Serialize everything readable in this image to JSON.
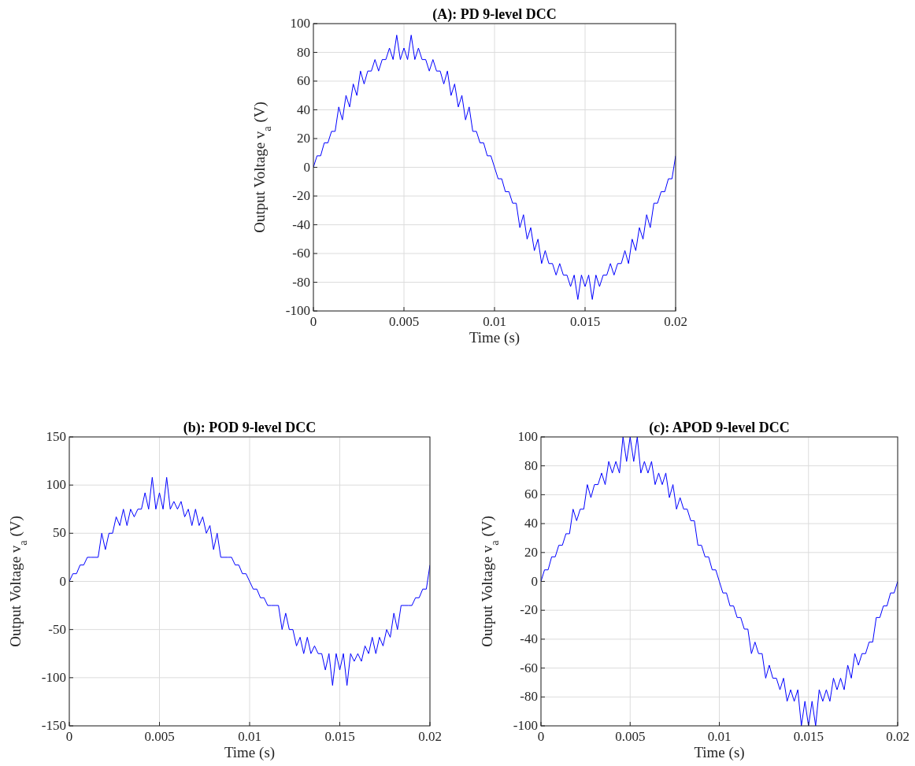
{
  "chart_data": [
    {
      "type": "line",
      "title": "(A): PD 9-level DCC",
      "xlabel": "Time (s)",
      "ylabel": "Output Voltage v$_{a}$ (V)",
      "xlim": [
        0,
        0.02
      ],
      "xticks": [
        0,
        0.005,
        0.01,
        0.015,
        0.02
      ],
      "ylim": [
        -100,
        100
      ],
      "yticks": [
        -100,
        -80,
        -60,
        -40,
        -20,
        0,
        20,
        40,
        60,
        80,
        100
      ],
      "grid": true,
      "marker": "none",
      "line_style": "solid",
      "x": [
        0,
        0.0002,
        0.0004,
        0.0006,
        0.0008,
        0.001,
        0.0012,
        0.0014,
        0.0016,
        0.0018,
        0.002,
        0.0022,
        0.0024,
        0.0026,
        0.0028,
        0.003,
        0.0032,
        0.0034,
        0.0036,
        0.0038,
        0.004,
        0.0042,
        0.0044,
        0.0046,
        0.0048,
        0.005,
        0.0052,
        0.0054,
        0.0056,
        0.0058,
        0.006,
        0.0062,
        0.0064,
        0.0066,
        0.0068,
        0.007,
        0.0072,
        0.0074,
        0.0076,
        0.0078,
        0.008,
        0.0082,
        0.0084,
        0.0086,
        0.0088,
        0.009,
        0.0092,
        0.0094,
        0.0096,
        0.0098,
        0.01,
        0.0102,
        0.0104,
        0.0106,
        0.0108,
        0.011,
        0.0112,
        0.0114,
        0.0116,
        0.0118,
        0.012,
        0.0122,
        0.0124,
        0.0126,
        0.0128,
        0.013,
        0.0132,
        0.0134,
        0.0136,
        0.0138,
        0.014,
        0.0142,
        0.0144,
        0.0146,
        0.0148,
        0.015,
        0.0152,
        0.0154,
        0.0156,
        0.0158,
        0.016,
        0.0162,
        0.0164,
        0.0166,
        0.0168,
        0.017,
        0.0172,
        0.0174,
        0.0176,
        0.0178,
        0.018,
        0.0182,
        0.0184,
        0.0186,
        0.0188,
        0.019,
        0.0192,
        0.0194,
        0.0196,
        0.0198,
        0.02
      ],
      "series": [
        {
          "color": "#0000ff",
          "values": [
            0,
            8,
            8,
            17,
            17,
            25,
            25,
            42,
            33,
            50,
            42,
            58,
            50,
            67,
            58,
            67,
            67,
            75,
            67,
            75,
            75,
            83,
            75,
            92,
            75,
            83,
            75,
            92,
            75,
            83,
            75,
            75,
            67,
            75,
            67,
            67,
            58,
            67,
            50,
            58,
            42,
            50,
            33,
            42,
            25,
            25,
            17,
            17,
            8,
            8,
            0,
            -8,
            -8,
            -17,
            -17,
            -25,
            -25,
            -42,
            -33,
            -50,
            -42,
            -58,
            -50,
            -67,
            -58,
            -67,
            -67,
            -75,
            -67,
            -75,
            -75,
            -83,
            -75,
            -92,
            -75,
            -83,
            -75,
            -92,
            -75,
            -83,
            -75,
            -75,
            -67,
            -75,
            -67,
            -67,
            -58,
            -67,
            -50,
            -58,
            -42,
            -50,
            -33,
            -42,
            -25,
            -25,
            -17,
            -17,
            -8,
            -8,
            8
          ]
        }
      ]
    },
    {
      "type": "line",
      "title": "(b): POD 9-level DCC",
      "xlabel": "Time (s)",
      "ylabel": "Output Voltage v$_{a}$ (V)",
      "xlim": [
        0,
        0.02
      ],
      "xticks": [
        0,
        0.005,
        0.01,
        0.015,
        0.02
      ],
      "ylim": [
        -150,
        150
      ],
      "yticks": [
        -150,
        -100,
        -50,
        0,
        50,
        100,
        150
      ],
      "grid": true,
      "marker": "none",
      "line_style": "solid",
      "x": [
        0,
        0.0002,
        0.0004,
        0.0006,
        0.0008,
        0.001,
        0.0012,
        0.0014,
        0.0016,
        0.0018,
        0.002,
        0.0022,
        0.0024,
        0.0026,
        0.0028,
        0.003,
        0.0032,
        0.0034,
        0.0036,
        0.0038,
        0.004,
        0.0042,
        0.0044,
        0.0046,
        0.0048,
        0.005,
        0.0052,
        0.0054,
        0.0056,
        0.0058,
        0.006,
        0.0062,
        0.0064,
        0.0066,
        0.0068,
        0.007,
        0.0072,
        0.0074,
        0.0076,
        0.0078,
        0.008,
        0.0082,
        0.0084,
        0.0086,
        0.0088,
        0.009,
        0.0092,
        0.0094,
        0.0096,
        0.0098,
        0.01,
        0.0102,
        0.0104,
        0.0106,
        0.0108,
        0.011,
        0.0112,
        0.0114,
        0.0116,
        0.0118,
        0.012,
        0.0122,
        0.0124,
        0.0126,
        0.0128,
        0.013,
        0.0132,
        0.0134,
        0.0136,
        0.0138,
        0.014,
        0.0142,
        0.0144,
        0.0146,
        0.0148,
        0.015,
        0.0152,
        0.0154,
        0.0156,
        0.0158,
        0.016,
        0.0162,
        0.0164,
        0.0166,
        0.0168,
        0.017,
        0.0172,
        0.0174,
        0.0176,
        0.0178,
        0.018,
        0.0182,
        0.0184,
        0.0186,
        0.0188,
        0.019,
        0.0192,
        0.0194,
        0.0196,
        0.0198,
        0.02
      ],
      "series": [
        {
          "color": "#0000ff",
          "values": [
            0,
            8,
            8,
            17,
            17,
            25,
            25,
            25,
            25,
            50,
            33,
            50,
            50,
            67,
            58,
            75,
            58,
            75,
            67,
            75,
            75,
            92,
            75,
            108,
            75,
            92,
            75,
            108,
            75,
            83,
            75,
            83,
            67,
            75,
            58,
            75,
            58,
            67,
            50,
            58,
            33,
            50,
            25,
            25,
            25,
            25,
            17,
            17,
            8,
            8,
            0,
            -8,
            -8,
            -17,
            -17,
            -25,
            -25,
            -25,
            -25,
            -50,
            -33,
            -50,
            -50,
            -67,
            -58,
            -75,
            -58,
            -75,
            -67,
            -75,
            -75,
            -92,
            -75,
            -108,
            -75,
            -92,
            -75,
            -108,
            -75,
            -83,
            -75,
            -83,
            -67,
            -75,
            -58,
            -75,
            -58,
            -67,
            -50,
            -58,
            -33,
            -50,
            -25,
            -25,
            -25,
            -25,
            -17,
            -17,
            -8,
            -8,
            17
          ]
        }
      ]
    },
    {
      "type": "line",
      "title": "(c): APOD 9-level DCC",
      "xlabel": "Time (s)",
      "ylabel": "Output Voltage v$_{a}$ (V)",
      "xlim": [
        0,
        0.02
      ],
      "xticks": [
        0,
        0.005,
        0.01,
        0.015,
        0.02
      ],
      "ylim": [
        -100,
        100
      ],
      "yticks": [
        -100,
        -80,
        -60,
        -40,
        -20,
        0,
        20,
        40,
        60,
        80,
        100
      ],
      "grid": true,
      "marker": "none",
      "line_style": "solid",
      "x": [
        0,
        0.0002,
        0.0004,
        0.0006,
        0.0008,
        0.001,
        0.0012,
        0.0014,
        0.0016,
        0.0018,
        0.002,
        0.0022,
        0.0024,
        0.0026,
        0.0028,
        0.003,
        0.0032,
        0.0034,
        0.0036,
        0.0038,
        0.004,
        0.0042,
        0.0044,
        0.0046,
        0.0048,
        0.005,
        0.0052,
        0.0054,
        0.0056,
        0.0058,
        0.006,
        0.0062,
        0.0064,
        0.0066,
        0.0068,
        0.007,
        0.0072,
        0.0074,
        0.0076,
        0.0078,
        0.008,
        0.0082,
        0.0084,
        0.0086,
        0.0088,
        0.009,
        0.0092,
        0.0094,
        0.0096,
        0.0098,
        0.01,
        0.0102,
        0.0104,
        0.0106,
        0.0108,
        0.011,
        0.0112,
        0.0114,
        0.0116,
        0.0118,
        0.012,
        0.0122,
        0.0124,
        0.0126,
        0.0128,
        0.013,
        0.0132,
        0.0134,
        0.0136,
        0.0138,
        0.014,
        0.0142,
        0.0144,
        0.0146,
        0.0148,
        0.015,
        0.0152,
        0.0154,
        0.0156,
        0.0158,
        0.016,
        0.0162,
        0.0164,
        0.0166,
        0.0168,
        0.017,
        0.0172,
        0.0174,
        0.0176,
        0.0178,
        0.018,
        0.0182,
        0.0184,
        0.0186,
        0.0188,
        0.019,
        0.0192,
        0.0194,
        0.0196,
        0.0198,
        0.02
      ],
      "series": [
        {
          "color": "#0000ff",
          "values": [
            0,
            8,
            8,
            17,
            17,
            25,
            25,
            33,
            33,
            50,
            42,
            50,
            50,
            67,
            58,
            67,
            67,
            75,
            67,
            83,
            75,
            83,
            75,
            100,
            83,
            100,
            83,
            100,
            75,
            83,
            75,
            83,
            67,
            75,
            67,
            75,
            58,
            67,
            50,
            58,
            50,
            50,
            42,
            42,
            25,
            25,
            17,
            17,
            8,
            8,
            0,
            -8,
            -8,
            -17,
            -17,
            -25,
            -25,
            -33,
            -33,
            -50,
            -42,
            -50,
            -50,
            -67,
            -58,
            -67,
            -67,
            -75,
            -67,
            -83,
            -75,
            -83,
            -75,
            -100,
            -83,
            -100,
            -83,
            -100,
            -75,
            -83,
            -75,
            -83,
            -67,
            -75,
            -67,
            -75,
            -58,
            -67,
            -50,
            -58,
            -50,
            -50,
            -42,
            -42,
            -25,
            -25,
            -17,
            -17,
            -8,
            -8,
            0
          ]
        }
      ]
    }
  ]
}
